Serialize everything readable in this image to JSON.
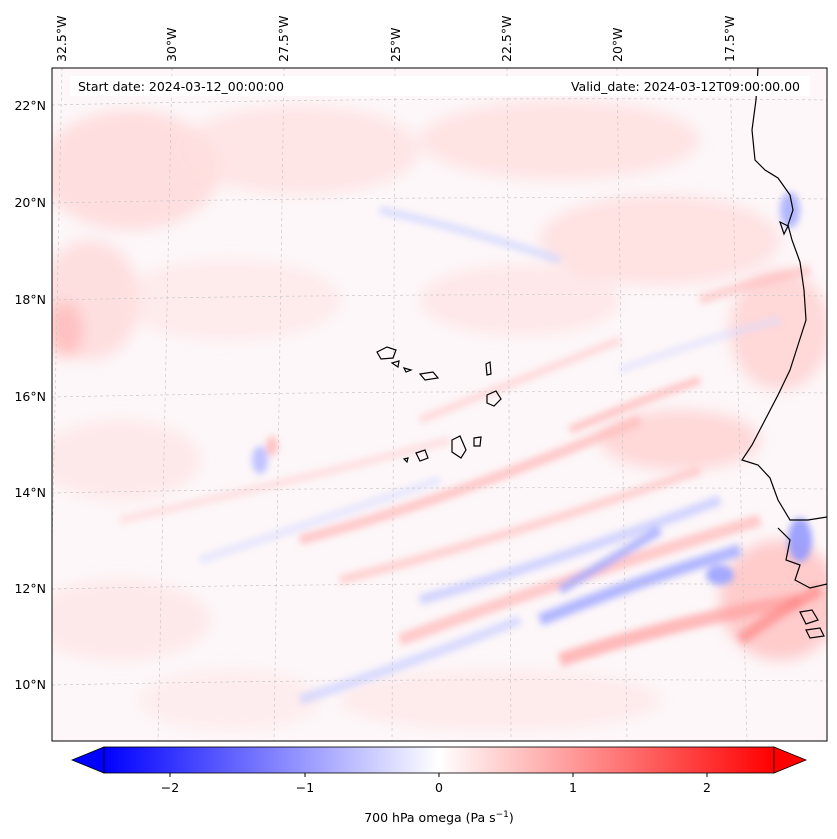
{
  "header": {
    "start_date": "Start date: 2024-03-12_00:00:00",
    "valid_date": "Valid_date: 2024-03-12T09:00:00.00"
  },
  "map": {
    "lon_labels": [
      "32.5°W",
      "30°W",
      "27.5°W",
      "25°W",
      "22.5°W",
      "20°W",
      "17.5°W"
    ],
    "lat_labels": [
      "22°N",
      "20°N",
      "18°N",
      "16°N",
      "14°N",
      "12°N",
      "10°N"
    ],
    "field_colors": {
      "positive": "#ff0000",
      "negative": "#0000ff",
      "neutral": "#ffffff"
    }
  },
  "colorbar": {
    "ticks": [
      "−2",
      "−1",
      "0",
      "1",
      "2"
    ],
    "label_main": "700 hPa omega (Pa s",
    "label_sup": "−1",
    "label_close": ")"
  }
}
